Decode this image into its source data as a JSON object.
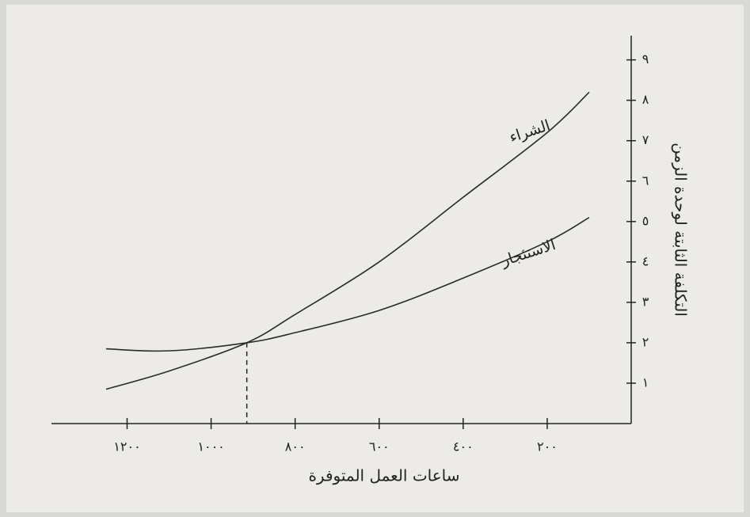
{
  "chart_data": {
    "type": "line",
    "x_label": "ساعات العمل المتوفرة",
    "y_label": "التكلفة الثابتة لوحدة الزمن",
    "x": [
      1250,
      1100,
      915,
      800,
      600,
      400,
      200,
      100
    ],
    "series": [
      {
        "name": "الشراء",
        "color": "#2a2a2a",
        "values": [
          0.85,
          1.3,
          2.0,
          2.7,
          4.0,
          5.6,
          7.2,
          8.2
        ]
      },
      {
        "name": "الاستئجار",
        "color": "#2a2a2a",
        "values": [
          1.85,
          1.8,
          2.0,
          2.25,
          2.8,
          3.6,
          4.5,
          5.1
        ]
      }
    ],
    "xlim": [
      1380,
      0
    ],
    "ylim": [
      0,
      9.6
    ],
    "xticks": [
      {
        "value": 1200,
        "label": "١٢٠٠"
      },
      {
        "value": 1000,
        "label": "١٠٠٠"
      },
      {
        "value": 800,
        "label": "٨٠٠"
      },
      {
        "value": 600,
        "label": "٦٠٠"
      },
      {
        "value": 400,
        "label": "٤٠٠"
      },
      {
        "value": 200,
        "label": "٢٠٠"
      }
    ],
    "yticks": [
      {
        "value": 1,
        "label": "١"
      },
      {
        "value": 2,
        "label": "٢"
      },
      {
        "value": 3,
        "label": "٣"
      },
      {
        "value": 4,
        "label": "٤"
      },
      {
        "value": 5,
        "label": "٥"
      },
      {
        "value": 6,
        "label": "٦"
      },
      {
        "value": 7,
        "label": "٧"
      },
      {
        "value": 8,
        "label": "٨"
      },
      {
        "value": 9,
        "label": "٩"
      }
    ],
    "grid": false
  }
}
